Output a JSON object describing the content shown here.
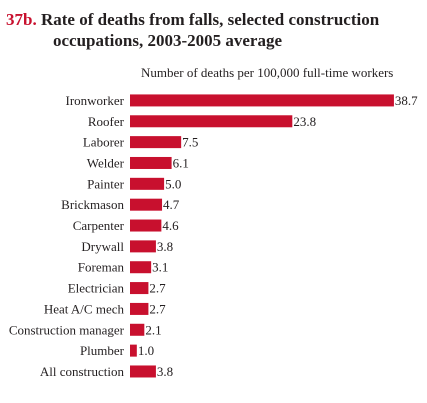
{
  "figure": {
    "number": "37b.",
    "title_line1": "Rate of deaths from falls, selected construction",
    "title_line2": "occupations, 2003-2005 average"
  },
  "chart_data": {
    "type": "bar",
    "orientation": "horizontal",
    "axis_caption": "Number of deaths per 100,000 full-time workers",
    "categories": [
      "Ironworker",
      "Roofer",
      "Laborer",
      "Welder",
      "Painter",
      "Brickmason",
      "Carpenter",
      "Drywall",
      "Foreman",
      "Electrician",
      "Heat A/C mech",
      "Construction manager",
      "Plumber",
      "All construction"
    ],
    "values": [
      38.7,
      23.8,
      7.5,
      6.1,
      5.0,
      4.7,
      4.6,
      3.8,
      3.1,
      2.7,
      2.7,
      2.1,
      1.0,
      3.8
    ],
    "value_labels": [
      "38.7",
      "23.8",
      "7.5",
      "6.1",
      "5.0",
      "4.7",
      "4.6",
      "3.8",
      "3.1",
      "2.7",
      "2.7",
      "2.1",
      "1.0",
      "3.8"
    ],
    "bar_color": "#c8102e",
    "grid": false,
    "legend": "none"
  }
}
